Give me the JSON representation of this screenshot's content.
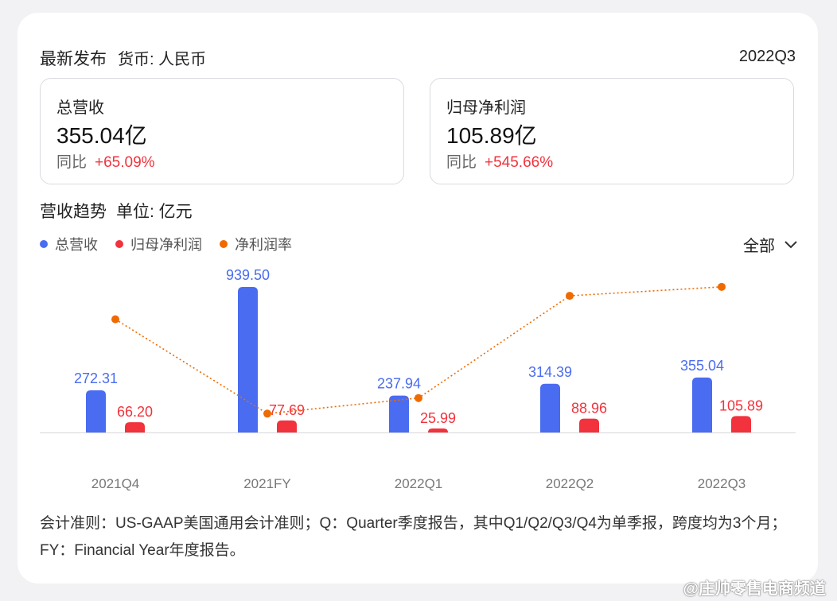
{
  "header": {
    "title": "最新发布",
    "currency": "货币: 人民币",
    "period": "2022Q3"
  },
  "metrics": [
    {
      "label": "总营收",
      "value": "355.04亿",
      "yoy_label": "同比",
      "yoy_value": "+65.09%"
    },
    {
      "label": "归母净利润",
      "value": "105.89亿",
      "yoy_label": "同比",
      "yoy_value": "+545.66%"
    }
  ],
  "section": {
    "title": "营收趋势",
    "unit": "单位: 亿元"
  },
  "filter": {
    "label": "全部"
  },
  "colors": {
    "revenue": "#4a6cf0",
    "net_profit": "#f2323c",
    "margin": "#ef6a00"
  },
  "chart_data": {
    "type": "bar",
    "categories": [
      "2021Q4",
      "2021FY",
      "2022Q1",
      "2022Q2",
      "2022Q3"
    ],
    "series": [
      {
        "name": "总营收",
        "type": "bar",
        "values": [
          272.31,
          939.5,
          237.94,
          314.39,
          355.04
        ],
        "labels": [
          "272.31",
          "939.50",
          "237.94",
          "314.39",
          "355.04"
        ]
      },
      {
        "name": "归母净利润",
        "type": "bar",
        "values": [
          66.2,
          77.69,
          25.99,
          88.96,
          105.89
        ],
        "labels": [
          "66.20",
          "77.69",
          "25.99",
          "88.96",
          "105.89"
        ]
      },
      {
        "name": "净利润率",
        "type": "line",
        "values": [
          24.31,
          8.27,
          10.92,
          28.3,
          29.82
        ]
      }
    ],
    "legend_position": "top-left",
    "grid": false
  },
  "footnote": "会计准则：US-GAAP美国通用会计准则；Q：Quarter季度报告，其中Q1/Q2/Q3/Q4为单季报，跨度均为3个月；FY：Financial Year年度报告。",
  "watermark": "@庄帅零售电商频道"
}
